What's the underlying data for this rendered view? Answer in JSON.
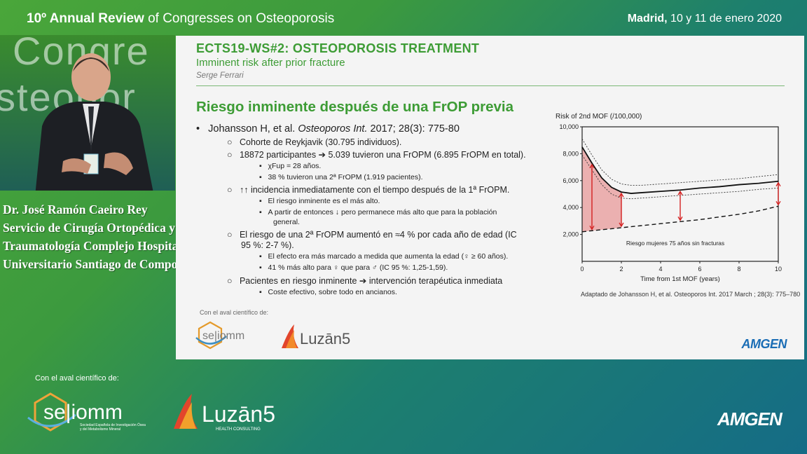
{
  "header": {
    "left_bold": "10º Annual Review",
    "left_rest": " of Congresses on Osteoporosis",
    "right_bold": "Madrid,",
    "right_rest": " 10 y 11 de enero 2020"
  },
  "video": {
    "bg_line1": "Congre",
    "bg_line2": "steopor"
  },
  "speaker_caption": [
    "Dr. José Ramón Caeiro Rey",
    "Servicio de Cirugía Ortopédica y",
    "Traumatología Complejo Hospitalario",
    " Universitario Santiago de Compostela"
  ],
  "slide": {
    "header_title": "ECTS19-WS#2: OSTEOPOROSIS TREATMENT",
    "header_subtitle": "Imminent risk after prior fracture",
    "header_author": "Serge Ferrari",
    "title": "Riesgo inminente después de una FrOP previa",
    "bullets": {
      "b1_pre": "Johansson H, et al. ",
      "b1_journal": "Osteoporos Int.",
      "b1_post": " 2017; 28(3): 775-80",
      "s1": "Cohorte de Reykjavik (30.795 individuos).",
      "s2": "18872 participantes ➔ 5.039 tuvieron una FrOPM (6.895 FrOPM en total).",
      "s2a": "χFup = 28 años.",
      "s2b": "38 % tuvieron una 2ª FrOPM (1.919 pacientes).",
      "s3": "↑↑ incidencia inmediatamente con el tiempo después de la 1ª FrOPM.",
      "s3a": "El riesgo inminente es el más alto.",
      "s3b1": "A partir de entonces ↓ pero permanece más alto que para la población",
      "s3b2": "general.",
      "s4a": "El riesgo de una 2ª FrOPM aumentó en ≈4 % por cada año de edad (IC",
      "s4b": "95 %: 2-7 %).",
      "s4c": "El efecto era más marcado a medida que aumenta la edad (♀ ≥ 60 años).",
      "s4d": "41 % más alto para ♀ que para ♂ (IC 95 %: 1,25-1,59).",
      "s5": "Pacientes en riesgo inminente ➔ intervención terapéutica inmediata",
      "s5a": "Coste efectivo, sobre todo en ancianos."
    },
    "aval_label": "Con el aval científico de:",
    "seiomm_logo_text": "se|iomm",
    "luzan_logo_text": "Luzān5",
    "amgen_logo_text": "AMGEN"
  },
  "chart_data": {
    "type": "line",
    "ylabel": "Risk of 2nd MOF (/100,000)",
    "xlabel": "Time from 1st MOF (years)",
    "x_ticks": [
      "0",
      "2",
      "4",
      "6",
      "8",
      "10"
    ],
    "y_ticks": [
      "2,000",
      "4,000",
      "6,000",
      "8,000",
      "10,000"
    ],
    "xlim": [
      0,
      10
    ],
    "ylim": [
      0,
      10000
    ],
    "annotation": "Riesgo mujeres 75 años sin fracturas",
    "footnote": "Adaptado de Johansson H, et al. Osteoporos Int. 2017 March ; 28(3): 775–780",
    "series": [
      {
        "x": [
          0,
          0.5,
          1,
          1.5,
          2,
          2.5,
          3,
          4,
          5,
          6,
          7,
          8,
          9,
          10
        ],
        "y": [
          8500,
          7300,
          6200,
          5500,
          5150,
          5050,
          5100,
          5200,
          5300,
          5450,
          5550,
          5700,
          5800,
          5950
        ]
      },
      {
        "x": [
          0,
          0.5,
          1,
          1.5,
          2,
          2.5,
          3,
          4,
          5,
          6,
          7,
          8,
          9,
          10
        ],
        "y": [
          9100,
          7900,
          6800,
          6100,
          5750,
          5650,
          5650,
          5750,
          5850,
          5950,
          6050,
          6150,
          6300,
          6450
        ]
      },
      {
        "x": [
          0,
          0.5,
          1,
          1.5,
          2,
          2.5,
          3,
          4,
          5,
          6,
          7,
          8,
          9,
          10
        ],
        "y": [
          7900,
          6800,
          5700,
          5000,
          4700,
          4650,
          4700,
          4800,
          4900,
          5000,
          5100,
          5200,
          5350,
          5450
        ]
      },
      {
        "x": [
          0,
          1,
          2,
          3,
          4,
          5,
          6,
          7,
          8,
          9,
          10
        ],
        "y": [
          2200,
          2350,
          2500,
          2650,
          2800,
          2950,
          3100,
          3300,
          3500,
          3750,
          4100
        ]
      }
    ],
    "arrows_x": [
      0.5,
      2,
      5,
      10
    ]
  },
  "footer": {
    "aval_label": "Con el aval científico de:",
    "seiomm_logo_text": "se|iomm",
    "seiomm_sub1": "Sociedad Española de Investigación Ósea",
    "seiomm_sub2": "y del Metabolismo Mineral",
    "luzan_logo_text": "Luzān5",
    "luzan_sub": "HEALTH CONSULTING",
    "amgen_logo_text": "AMGEN"
  }
}
